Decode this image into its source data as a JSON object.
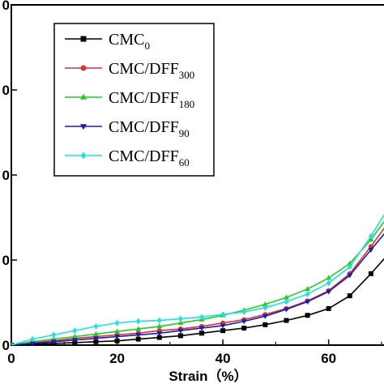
{
  "chart_data": {
    "type": "line",
    "xlabel": "Strain（%）",
    "ylabel": "",
    "xlim": [
      0,
      72
    ],
    "ylim": [
      0,
      4
    ],
    "xticks": [
      "0",
      "20",
      "40",
      "60"
    ],
    "yticks": [
      {
        "value": 1,
        "label": "0"
      },
      {
        "value": 2,
        "label": "0"
      },
      {
        "value": 3,
        "label": "0"
      },
      {
        "value": 4,
        "label": "0"
      }
    ],
    "grid": false,
    "legend": "top-left",
    "series": [
      {
        "base": "CMC",
        "sub": "0",
        "color": "#000000",
        "marker": "square",
        "points": [
          [
            0,
            0.0
          ],
          [
            4,
            0.01
          ],
          [
            8,
            0.02
          ],
          [
            12,
            0.03
          ],
          [
            16,
            0.04
          ],
          [
            20,
            0.05
          ],
          [
            24,
            0.07
          ],
          [
            28,
            0.09
          ],
          [
            32,
            0.11
          ],
          [
            36,
            0.14
          ],
          [
            40,
            0.17
          ],
          [
            44,
            0.2
          ],
          [
            48,
            0.24
          ],
          [
            52,
            0.29
          ],
          [
            56,
            0.35
          ],
          [
            60,
            0.43
          ],
          [
            64,
            0.58
          ],
          [
            68,
            0.84
          ],
          [
            72,
            1.12
          ]
        ]
      },
      {
        "base": "CMC/DFF",
        "sub": "300",
        "color": "#e03030",
        "marker": "circle",
        "points": [
          [
            0,
            0.0
          ],
          [
            4,
            0.03
          ],
          [
            8,
            0.05
          ],
          [
            12,
            0.08
          ],
          [
            16,
            0.1
          ],
          [
            20,
            0.12
          ],
          [
            24,
            0.14
          ],
          [
            28,
            0.17
          ],
          [
            32,
            0.19
          ],
          [
            36,
            0.22
          ],
          [
            40,
            0.26
          ],
          [
            44,
            0.3
          ],
          [
            48,
            0.36
          ],
          [
            52,
            0.43
          ],
          [
            56,
            0.52
          ],
          [
            60,
            0.64
          ],
          [
            64,
            0.84
          ],
          [
            68,
            1.16
          ],
          [
            72,
            1.5
          ]
        ]
      },
      {
        "base": "CMC/DFF",
        "sub": "180",
        "color": "#22cc22",
        "marker": "triangle-up",
        "points": [
          [
            0,
            0.0
          ],
          [
            4,
            0.04
          ],
          [
            8,
            0.07
          ],
          [
            12,
            0.1
          ],
          [
            16,
            0.13
          ],
          [
            20,
            0.16
          ],
          [
            24,
            0.19
          ],
          [
            28,
            0.22
          ],
          [
            32,
            0.26
          ],
          [
            36,
            0.3
          ],
          [
            40,
            0.35
          ],
          [
            44,
            0.41
          ],
          [
            48,
            0.48
          ],
          [
            52,
            0.56
          ],
          [
            56,
            0.66
          ],
          [
            60,
            0.79
          ],
          [
            64,
            0.96
          ],
          [
            68,
            1.24
          ],
          [
            72,
            1.58
          ]
        ]
      },
      {
        "base": "CMC/DFF",
        "sub": "90",
        "color": "#1c1cb4",
        "marker": "triangle-down",
        "points": [
          [
            0,
            0.0
          ],
          [
            4,
            0.02
          ],
          [
            8,
            0.04
          ],
          [
            12,
            0.06
          ],
          [
            16,
            0.08
          ],
          [
            20,
            0.1
          ],
          [
            24,
            0.12
          ],
          [
            28,
            0.14
          ],
          [
            32,
            0.17
          ],
          [
            36,
            0.2
          ],
          [
            40,
            0.23
          ],
          [
            44,
            0.28
          ],
          [
            48,
            0.34
          ],
          [
            52,
            0.42
          ],
          [
            56,
            0.51
          ],
          [
            60,
            0.63
          ],
          [
            64,
            0.82
          ],
          [
            68,
            1.12
          ],
          [
            72,
            1.42
          ]
        ]
      },
      {
        "base": "CMC/DFF",
        "sub": "60",
        "color": "#22e0e0",
        "marker": "diamond",
        "points": [
          [
            0,
            0.0
          ],
          [
            4,
            0.07
          ],
          [
            8,
            0.12
          ],
          [
            12,
            0.17
          ],
          [
            16,
            0.22
          ],
          [
            20,
            0.26
          ],
          [
            24,
            0.28
          ],
          [
            28,
            0.29
          ],
          [
            32,
            0.31
          ],
          [
            36,
            0.33
          ],
          [
            40,
            0.36
          ],
          [
            44,
            0.39
          ],
          [
            48,
            0.44
          ],
          [
            52,
            0.51
          ],
          [
            56,
            0.6
          ],
          [
            60,
            0.73
          ],
          [
            64,
            0.92
          ],
          [
            68,
            1.28
          ],
          [
            72,
            1.68
          ]
        ]
      }
    ]
  }
}
